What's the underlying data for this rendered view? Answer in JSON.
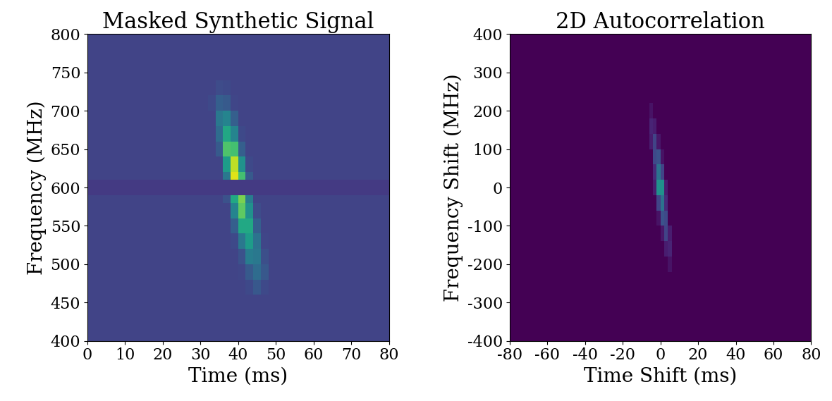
{
  "chart_data": [
    {
      "type": "heatmap",
      "title": "Masked Synthetic Signal",
      "x_label": "Time (ms)",
      "y_label": "Frequency (MHz)",
      "xlim": [
        0,
        80
      ],
      "ylim": [
        400,
        800
      ],
      "xticks": [
        0,
        10,
        20,
        30,
        40,
        50,
        60,
        70,
        80
      ],
      "yticks": [
        400,
        450,
        500,
        550,
        600,
        650,
        700,
        750,
        800
      ],
      "color_range": [
        0,
        1
      ],
      "x_edges": [
        0,
        30,
        32,
        34,
        36,
        38,
        40,
        42,
        44,
        46,
        48,
        50,
        80
      ],
      "y_edges": [
        400,
        460,
        480,
        500,
        520,
        540,
        560,
        580,
        590,
        610,
        620,
        640,
        660,
        680,
        700,
        720,
        740,
        800
      ],
      "cells": [
        [
          0.2,
          0.2,
          0.2,
          0.2,
          0.2,
          0.2,
          0.2,
          0.2,
          0.2,
          0.2,
          0.2,
          0.2
        ],
        [
          0.2,
          0.2,
          0.2,
          0.2,
          0.2,
          0.2,
          0.2,
          0.22,
          0.27,
          0.22,
          0.2,
          0.2
        ],
        [
          0.2,
          0.2,
          0.2,
          0.2,
          0.2,
          0.2,
          0.21,
          0.28,
          0.35,
          0.27,
          0.2,
          0.2
        ],
        [
          0.2,
          0.2,
          0.2,
          0.2,
          0.2,
          0.2,
          0.25,
          0.42,
          0.4,
          0.24,
          0.2,
          0.2
        ],
        [
          0.2,
          0.2,
          0.2,
          0.2,
          0.2,
          0.22,
          0.4,
          0.55,
          0.38,
          0.21,
          0.2,
          0.2
        ],
        [
          0.2,
          0.2,
          0.2,
          0.2,
          0.2,
          0.3,
          0.6,
          0.6,
          0.3,
          0.2,
          0.2,
          0.2
        ],
        [
          0.2,
          0.2,
          0.2,
          0.2,
          0.2,
          0.45,
          0.75,
          0.5,
          0.23,
          0.2,
          0.2,
          0.2
        ],
        [
          0.2,
          0.2,
          0.2,
          0.2,
          0.25,
          0.6,
          0.8,
          0.42,
          0.2,
          0.2,
          0.2,
          0.2
        ],
        [
          0.17,
          0.17,
          0.17,
          0.17,
          0.17,
          0.17,
          0.17,
          0.17,
          0.17,
          0.17,
          0.17,
          0.17
        ],
        [
          0.2,
          0.2,
          0.2,
          0.2,
          0.4,
          0.95,
          0.7,
          0.28,
          0.2,
          0.2,
          0.2,
          0.2
        ],
        [
          0.2,
          0.2,
          0.2,
          0.2,
          0.55,
          0.9,
          0.5,
          0.22,
          0.2,
          0.2,
          0.2,
          0.2
        ],
        [
          0.2,
          0.2,
          0.2,
          0.28,
          0.72,
          0.7,
          0.3,
          0.2,
          0.2,
          0.2,
          0.2,
          0.2
        ],
        [
          0.2,
          0.2,
          0.2,
          0.35,
          0.6,
          0.45,
          0.22,
          0.2,
          0.2,
          0.2,
          0.2,
          0.2
        ],
        [
          0.2,
          0.2,
          0.2,
          0.4,
          0.45,
          0.3,
          0.2,
          0.2,
          0.2,
          0.2,
          0.2,
          0.2
        ],
        [
          0.2,
          0.2,
          0.22,
          0.3,
          0.28,
          0.21,
          0.2,
          0.2,
          0.2,
          0.2,
          0.2,
          0.2
        ],
        [
          0.2,
          0.2,
          0.2,
          0.23,
          0.22,
          0.2,
          0.2,
          0.2,
          0.2,
          0.2,
          0.2,
          0.2
        ],
        [
          0.2,
          0.2,
          0.2,
          0.2,
          0.2,
          0.2,
          0.2,
          0.2,
          0.2,
          0.2,
          0.2,
          0.2
        ]
      ]
    },
    {
      "type": "heatmap",
      "title": "2D Autocorrelation",
      "x_label": "Time Shift (ms)",
      "y_label": "Frequency Shift (MHz)",
      "xlim": [
        -80,
        80
      ],
      "ylim": [
        -400,
        400
      ],
      "xticks": [
        -80,
        -60,
        -40,
        -20,
        0,
        20,
        40,
        60,
        80
      ],
      "yticks": [
        -400,
        -300,
        -200,
        -100,
        0,
        100,
        200,
        300,
        400
      ],
      "color_range": [
        0,
        1
      ],
      "x_edges": [
        -80,
        -10,
        -8,
        -6,
        -4,
        -2,
        0,
        2,
        4,
        6,
        8,
        10,
        80
      ],
      "y_edges": [
        -400,
        -220,
        -180,
        -140,
        -100,
        -60,
        -20,
        20,
        60,
        100,
        140,
        180,
        220,
        400
      ],
      "cells": [
        [
          0,
          0,
          0,
          0,
          0,
          0,
          0,
          0,
          0,
          0,
          0,
          0
        ],
        [
          0,
          0,
          0,
          0,
          0,
          0,
          0,
          0,
          0.05,
          0,
          0,
          0
        ],
        [
          0,
          0,
          0,
          0,
          0,
          0,
          0,
          0.08,
          0.1,
          0,
          0,
          0
        ],
        [
          0,
          0,
          0,
          0,
          0,
          0,
          0.06,
          0.2,
          0.08,
          0,
          0,
          0
        ],
        [
          0,
          0,
          0,
          0,
          0,
          0.05,
          0.25,
          0.22,
          0,
          0,
          0,
          0
        ],
        [
          0,
          0,
          0,
          0,
          0,
          0.2,
          0.38,
          0.12,
          0,
          0,
          0,
          0
        ],
        [
          0,
          0,
          0,
          0,
          0.08,
          0.5,
          0.5,
          0.08,
          0,
          0,
          0,
          0
        ],
        [
          0,
          0,
          0,
          0,
          0.12,
          0.38,
          0.2,
          0,
          0,
          0,
          0,
          0
        ],
        [
          0,
          0,
          0,
          0,
          0.22,
          0.25,
          0.05,
          0,
          0,
          0,
          0,
          0
        ],
        [
          0,
          0,
          0,
          0.08,
          0.2,
          0.06,
          0,
          0,
          0,
          0,
          0,
          0
        ],
        [
          0,
          0,
          0,
          0.1,
          0.08,
          0,
          0,
          0,
          0,
          0,
          0,
          0
        ],
        [
          0,
          0,
          0,
          0.05,
          0,
          0,
          0,
          0,
          0,
          0,
          0,
          0
        ],
        [
          0,
          0,
          0,
          0,
          0,
          0,
          0,
          0,
          0,
          0,
          0,
          0
        ]
      ]
    }
  ]
}
